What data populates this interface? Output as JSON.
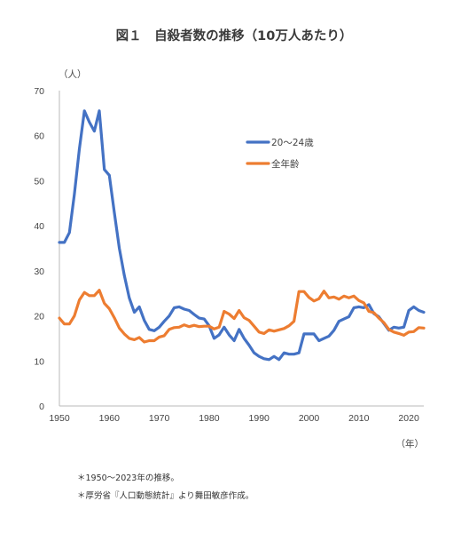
{
  "chart_data": {
    "type": "line",
    "title": "図１　自殺者数の推移（10万人あたり）",
    "ylabel": "（人）",
    "xlabel": "（年）",
    "xlim": [
      1950,
      2023
    ],
    "ylim": [
      0,
      70
    ],
    "x_ticks": [
      1950,
      1960,
      1970,
      1980,
      1990,
      2000,
      2010,
      2020
    ],
    "y_ticks": [
      0,
      10,
      20,
      30,
      40,
      50,
      60,
      70
    ],
    "legend_position": "upper-right",
    "series": [
      {
        "name": "20～24歳",
        "color": "#4472C4",
        "points": [
          [
            1950,
            36.3
          ],
          [
            1951,
            36.3
          ],
          [
            1952,
            38.5
          ],
          [
            1953,
            47
          ],
          [
            1954,
            57
          ],
          [
            1955,
            65.5
          ],
          [
            1956,
            63
          ],
          [
            1957,
            61
          ],
          [
            1958,
            65.5
          ],
          [
            1959,
            52.5
          ],
          [
            1960,
            51.2
          ],
          [
            1961,
            43
          ],
          [
            1962,
            35
          ],
          [
            1963,
            29
          ],
          [
            1964,
            24
          ],
          [
            1965,
            20.8
          ],
          [
            1966,
            22
          ],
          [
            1967,
            19
          ],
          [
            1968,
            17
          ],
          [
            1969,
            16.7
          ],
          [
            1970,
            17.5
          ],
          [
            1971,
            18.8
          ],
          [
            1972,
            20
          ],
          [
            1973,
            21.8
          ],
          [
            1974,
            22
          ],
          [
            1975,
            21.5
          ],
          [
            1976,
            21.2
          ],
          [
            1977,
            20.3
          ],
          [
            1978,
            19.5
          ],
          [
            1979,
            19.3
          ],
          [
            1980,
            17.8
          ],
          [
            1981,
            15
          ],
          [
            1982,
            15.8
          ],
          [
            1983,
            17.5
          ],
          [
            1984,
            15.8
          ],
          [
            1985,
            14.5
          ],
          [
            1986,
            17
          ],
          [
            1987,
            15
          ],
          [
            1988,
            13.5
          ],
          [
            1989,
            11.8
          ],
          [
            1990,
            11
          ],
          [
            1991,
            10.5
          ],
          [
            1992,
            10.3
          ],
          [
            1993,
            11
          ],
          [
            1994,
            10.3
          ],
          [
            1995,
            11.8
          ],
          [
            1996,
            11.5
          ],
          [
            1997,
            11.5
          ],
          [
            1998,
            11.8
          ],
          [
            1999,
            16
          ],
          [
            2000,
            16
          ],
          [
            2001,
            16
          ],
          [
            2002,
            14.5
          ],
          [
            2003,
            15
          ],
          [
            2004,
            15.5
          ],
          [
            2005,
            16.8
          ],
          [
            2006,
            18.8
          ],
          [
            2007,
            19.3
          ],
          [
            2008,
            19.8
          ],
          [
            2009,
            21.8
          ],
          [
            2010,
            22
          ],
          [
            2011,
            21.8
          ],
          [
            2012,
            22.5
          ],
          [
            2013,
            20.5
          ],
          [
            2014,
            19.8
          ],
          [
            2015,
            18.3
          ],
          [
            2016,
            16.8
          ],
          [
            2017,
            17.5
          ],
          [
            2018,
            17.3
          ],
          [
            2019,
            17.5
          ],
          [
            2020,
            21.2
          ],
          [
            2021,
            22
          ],
          [
            2022,
            21.2
          ],
          [
            2023,
            20.8
          ]
        ]
      },
      {
        "name": "全年齢",
        "color": "#ED7D31",
        "points": [
          [
            1950,
            19.5
          ],
          [
            1951,
            18.2
          ],
          [
            1952,
            18.2
          ],
          [
            1953,
            20
          ],
          [
            1954,
            23.5
          ],
          [
            1955,
            25.2
          ],
          [
            1956,
            24.5
          ],
          [
            1957,
            24.5
          ],
          [
            1958,
            25.7
          ],
          [
            1959,
            22.8
          ],
          [
            1960,
            21.6
          ],
          [
            1961,
            19.6
          ],
          [
            1962,
            17.3
          ],
          [
            1963,
            16
          ],
          [
            1964,
            15
          ],
          [
            1965,
            14.7
          ],
          [
            1966,
            15.2
          ],
          [
            1967,
            14.2
          ],
          [
            1968,
            14.5
          ],
          [
            1969,
            14.5
          ],
          [
            1970,
            15.3
          ],
          [
            1971,
            15.6
          ],
          [
            1972,
            17
          ],
          [
            1973,
            17.4
          ],
          [
            1974,
            17.5
          ],
          [
            1975,
            18
          ],
          [
            1976,
            17.6
          ],
          [
            1977,
            17.9
          ],
          [
            1978,
            17.6
          ],
          [
            1979,
            17.7
          ],
          [
            1980,
            17.7
          ],
          [
            1981,
            17.1
          ],
          [
            1982,
            17.5
          ],
          [
            1983,
            21
          ],
          [
            1984,
            20.4
          ],
          [
            1985,
            19.4
          ],
          [
            1986,
            21.2
          ],
          [
            1987,
            19.6
          ],
          [
            1988,
            19
          ],
          [
            1989,
            17.7
          ],
          [
            1990,
            16.4
          ],
          [
            1991,
            16.1
          ],
          [
            1992,
            16.9
          ],
          [
            1993,
            16.6
          ],
          [
            1994,
            16.9
          ],
          [
            1995,
            17.2
          ],
          [
            1996,
            17.8
          ],
          [
            1997,
            18.8
          ],
          [
            1998,
            25.4
          ],
          [
            1999,
            25.4
          ],
          [
            2000,
            24.1
          ],
          [
            2001,
            23.3
          ],
          [
            2002,
            23.8
          ],
          [
            2003,
            25.5
          ],
          [
            2004,
            24
          ],
          [
            2005,
            24.2
          ],
          [
            2006,
            23.7
          ],
          [
            2007,
            24.4
          ],
          [
            2008,
            24
          ],
          [
            2009,
            24.4
          ],
          [
            2010,
            23.4
          ],
          [
            2011,
            22.9
          ],
          [
            2012,
            21
          ],
          [
            2013,
            20.7
          ],
          [
            2014,
            19.5
          ],
          [
            2015,
            18.5
          ],
          [
            2016,
            17
          ],
          [
            2017,
            16.4
          ],
          [
            2018,
            16.1
          ],
          [
            2019,
            15.7
          ],
          [
            2020,
            16.4
          ],
          [
            2021,
            16.5
          ],
          [
            2022,
            17.4
          ],
          [
            2023,
            17.3
          ]
        ]
      }
    ]
  },
  "notes": [
    "＊1950～2023年の推移。",
    "＊厚労省『人口動態統計』より舞田敏彦作成。"
  ]
}
